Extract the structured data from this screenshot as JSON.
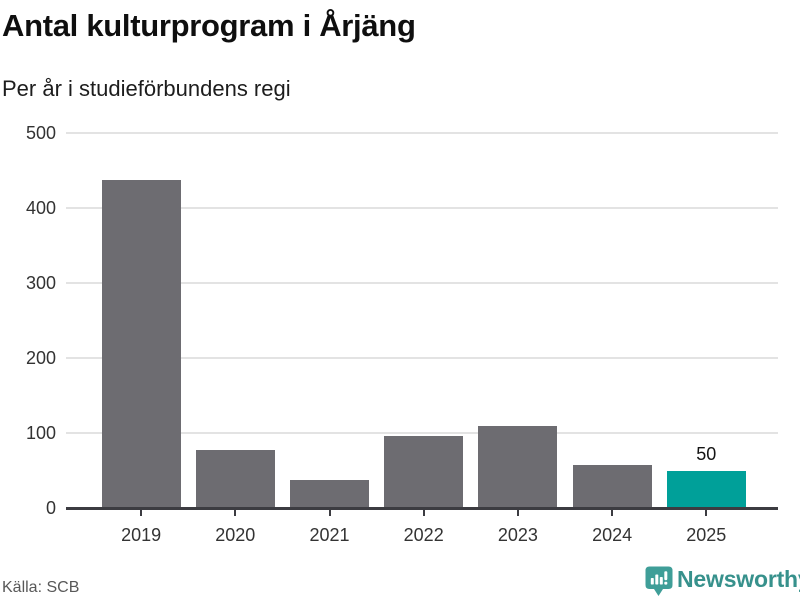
{
  "header": {
    "title": "Antal kulturprogram i Årjäng",
    "subtitle": "Per år i studieförbundens regi"
  },
  "footer": {
    "source": "Källa: SCB",
    "brand": "Newsworthy",
    "brand_icon": "newsworthy-bubble-bar-chart-icon"
  },
  "colors": {
    "bar_default": "#6d6c71",
    "bar_highlight": "#00a099",
    "grid": "#e3e3e3",
    "axis": "#3c3c41",
    "brand_teal": "#3f9e98"
  },
  "chart_data": {
    "type": "bar",
    "title": "Antal kulturprogram i Årjäng",
    "subtitle": "Per år i studieförbundens regi",
    "categories": [
      "2019",
      "2020",
      "2021",
      "2022",
      "2023",
      "2024",
      "2025"
    ],
    "values": [
      437,
      78,
      37,
      96,
      110,
      57,
      50
    ],
    "highlight_index": 6,
    "data_labels": {
      "6": "50"
    },
    "xlabel": "",
    "ylabel": "",
    "ylim": [
      0,
      500
    ],
    "yticks": [
      0,
      100,
      200,
      300,
      400,
      500
    ],
    "grid": true,
    "legend": false,
    "source": "Källa: SCB"
  }
}
